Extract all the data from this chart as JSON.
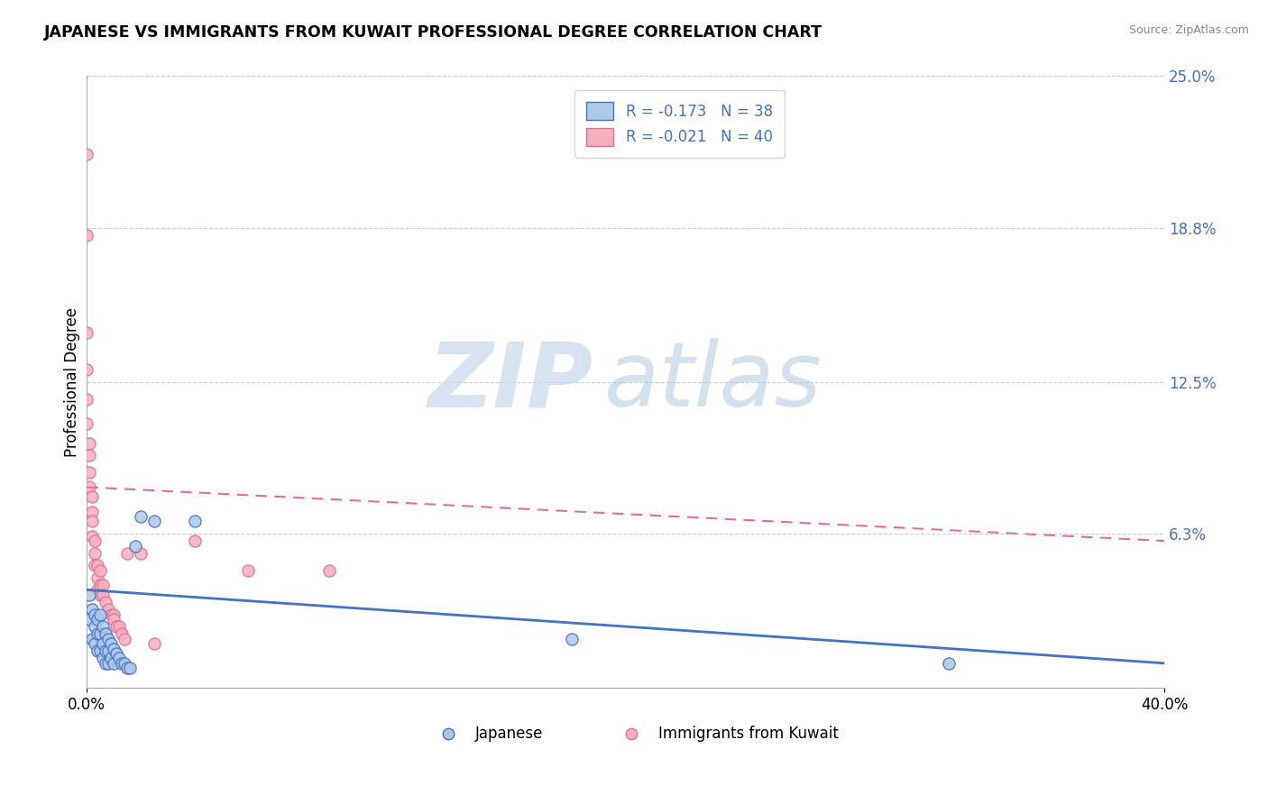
{
  "title": "JAPANESE VS IMMIGRANTS FROM KUWAIT PROFESSIONAL DEGREE CORRELATION CHART",
  "source": "Source: ZipAtlas.com",
  "ylabel": "Professional Degree",
  "xlim": [
    0.0,
    0.4
  ],
  "ylim": [
    0.0,
    0.25
  ],
  "ytick_positions_right": [
    0.25,
    0.188,
    0.125,
    0.063
  ],
  "ytick_labels_right": [
    "25.0%",
    "18.8%",
    "12.5%",
    "6.3%"
  ],
  "legend_text1": "R = -0.173   N = 38",
  "legend_text2": "R = -0.021   N = 40",
  "legend_label1": "Japanese",
  "legend_label2": "Immigrants from Kuwait",
  "color_blue": "#adc8e8",
  "color_pink": "#f5b0be",
  "line_color_blue": "#4472c4",
  "line_color_pink": "#e07090",
  "watermark_zip": "ZIP",
  "watermark_atlas": "atlas",
  "background_color": "#ffffff",
  "japanese_x": [
    0.001,
    0.001,
    0.002,
    0.002,
    0.003,
    0.003,
    0.003,
    0.004,
    0.004,
    0.004,
    0.005,
    0.005,
    0.005,
    0.006,
    0.006,
    0.006,
    0.007,
    0.007,
    0.007,
    0.008,
    0.008,
    0.008,
    0.009,
    0.009,
    0.01,
    0.01,
    0.011,
    0.012,
    0.013,
    0.014,
    0.015,
    0.016,
    0.018,
    0.02,
    0.025,
    0.04,
    0.18,
    0.32
  ],
  "japanese_y": [
    0.038,
    0.028,
    0.032,
    0.02,
    0.03,
    0.025,
    0.018,
    0.028,
    0.022,
    0.015,
    0.03,
    0.022,
    0.015,
    0.025,
    0.018,
    0.012,
    0.022,
    0.015,
    0.01,
    0.02,
    0.015,
    0.01,
    0.018,
    0.012,
    0.016,
    0.01,
    0.014,
    0.012,
    0.01,
    0.01,
    0.008,
    0.008,
    0.058,
    0.07,
    0.068,
    0.068,
    0.02,
    0.01
  ],
  "kuwait_x": [
    0.0,
    0.0,
    0.0,
    0.0,
    0.0,
    0.0,
    0.001,
    0.001,
    0.001,
    0.001,
    0.002,
    0.002,
    0.002,
    0.002,
    0.003,
    0.003,
    0.003,
    0.004,
    0.004,
    0.004,
    0.005,
    0.005,
    0.005,
    0.006,
    0.006,
    0.007,
    0.008,
    0.009,
    0.01,
    0.01,
    0.011,
    0.012,
    0.013,
    0.014,
    0.015,
    0.02,
    0.025,
    0.04,
    0.06,
    0.09
  ],
  "kuwait_y": [
    0.218,
    0.185,
    0.145,
    0.13,
    0.118,
    0.108,
    0.1,
    0.095,
    0.088,
    0.082,
    0.078,
    0.072,
    0.068,
    0.062,
    0.06,
    0.055,
    0.05,
    0.05,
    0.045,
    0.04,
    0.048,
    0.042,
    0.038,
    0.042,
    0.038,
    0.035,
    0.032,
    0.03,
    0.03,
    0.028,
    0.025,
    0.025,
    0.022,
    0.02,
    0.055,
    0.055,
    0.018,
    0.06,
    0.048,
    0.048
  ],
  "blue_trend_x": [
    0.0,
    0.4
  ],
  "blue_trend_y": [
    0.04,
    0.01
  ],
  "pink_trend_x": [
    0.0,
    0.4
  ],
  "pink_trend_y": [
    0.082,
    0.06
  ],
  "grid_color": "#cccccc",
  "grid_style": "--"
}
